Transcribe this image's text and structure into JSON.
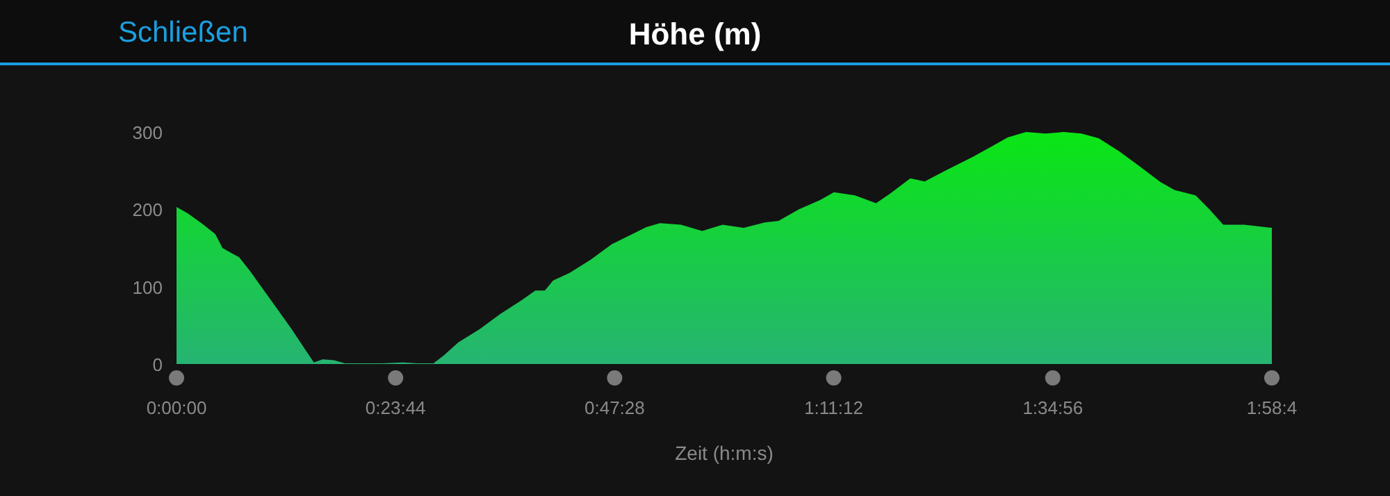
{
  "chart_data": {
    "type": "area",
    "title": "Höhe (m)",
    "xlabel": "Zeit (h:m:s)",
    "annotations": [
      "Schließen"
    ],
    "x": [
      0,
      0.02,
      0.045,
      0.07,
      0.083,
      0.103,
      0.113,
      0.133,
      0.158,
      0.183,
      0.208,
      0.233,
      0.248,
      0.264,
      0.284,
      0.304,
      0.334,
      0.371,
      0.409,
      0.434,
      0.464,
      0.484,
      0.509,
      0.547,
      0.585,
      0.622,
      0.648,
      0.665,
      0.68,
      0.71,
      0.748,
      0.786,
      0.823,
      0.848,
      0.873,
      0.911,
      0.949,
      0.986,
      1.024,
      1.062,
      1.087,
      1.124,
      1.162,
      1.187,
      1.225,
      1.263,
      1.288,
      1.325,
      1.351,
      1.388,
      1.438,
      1.476,
      1.501,
      1.534,
      1.569,
      1.602,
      1.634,
      1.665,
      1.702,
      1.74,
      1.777,
      1.802,
      1.84,
      1.865,
      1.89,
      1.928,
      1.953,
      1.97778
    ],
    "series": [
      {
        "color": "#0ae614",
        "values": [
          203,
          195,
          182,
          168,
          150,
          142,
          138,
          120,
          95,
          70,
          45,
          18,
          2,
          6,
          5,
          1,
          1,
          1,
          2,
          1,
          1,
          12,
          28,
          45,
          65,
          82,
          95,
          95,
          108,
          118,
          135,
          155,
          168,
          177,
          182,
          180,
          172,
          180,
          176,
          183,
          185,
          200,
          212,
          222,
          218,
          208,
          220,
          240,
          236,
          250,
          268,
          283,
          293,
          300,
          298,
          300,
          298,
          292,
          275,
          255,
          235,
          225,
          218,
          200,
          180,
          180,
          178,
          176
        ]
      }
    ],
    "xlim": [
      0,
      1.97778
    ],
    "xticks": [
      {
        "value": 0,
        "label": "0:00:00"
      },
      {
        "value": 0.39556,
        "label": "0:23:44"
      },
      {
        "value": 0.79111,
        "label": "0:47:28"
      },
      {
        "value": 1.18667,
        "label": "1:11:12"
      },
      {
        "value": 1.58222,
        "label": "1:34:56"
      },
      {
        "value": 1.97778,
        "label": "1:58:4"
      }
    ],
    "ylim": [
      0,
      300
    ],
    "yticks": [
      0,
      100,
      200,
      300
    ],
    "grid": false
  }
}
